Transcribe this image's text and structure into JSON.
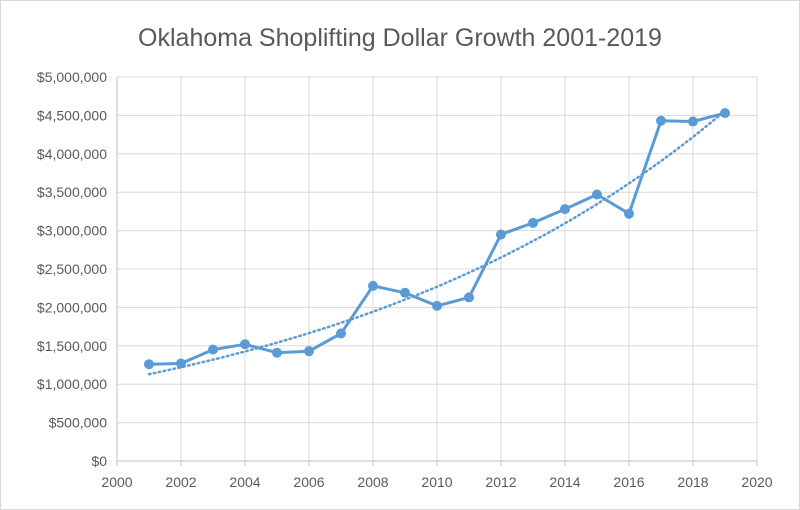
{
  "chart_data": {
    "type": "line",
    "title": "Oklahoma Shoplifting Dollar Growth 2001-2019",
    "xlabel": "",
    "ylabel": "",
    "xlim": [
      2000,
      2020
    ],
    "ylim": [
      0,
      5000000
    ],
    "x_ticks": [
      "2000",
      "2002",
      "2004",
      "2006",
      "2008",
      "2010",
      "2012",
      "2014",
      "2016",
      "2018",
      "2020"
    ],
    "y_ticks": [
      "$0",
      "$500,000",
      "$1,000,000",
      "$1,500,000",
      "$2,000,000",
      "$2,500,000",
      "$3,000,000",
      "$3,500,000",
      "$4,000,000",
      "$4,500,000",
      "$5,000,000"
    ],
    "grid": true,
    "legend": "none",
    "series": [
      {
        "x": [
          2001,
          2002,
          2003,
          2004,
          2005,
          2006,
          2007,
          2008,
          2009,
          2010,
          2011,
          2012,
          2013,
          2014,
          2015,
          2016,
          2017,
          2018,
          2019
        ],
        "values": [
          1260000,
          1270000,
          1450000,
          1520000,
          1410000,
          1430000,
          1660000,
          2280000,
          2190000,
          2020000,
          2130000,
          2950000,
          3100000,
          3280000,
          3470000,
          3220000,
          4430000,
          4420000,
          4530000
        ],
        "color": "#5b9bd5",
        "marker": "circle"
      }
    ],
    "trendline": {
      "kind": "exponential",
      "style": "dotted",
      "color": "#5b9bd5",
      "x": [
        2001,
        2019
      ],
      "values": [
        1130000,
        4560000
      ]
    }
  }
}
